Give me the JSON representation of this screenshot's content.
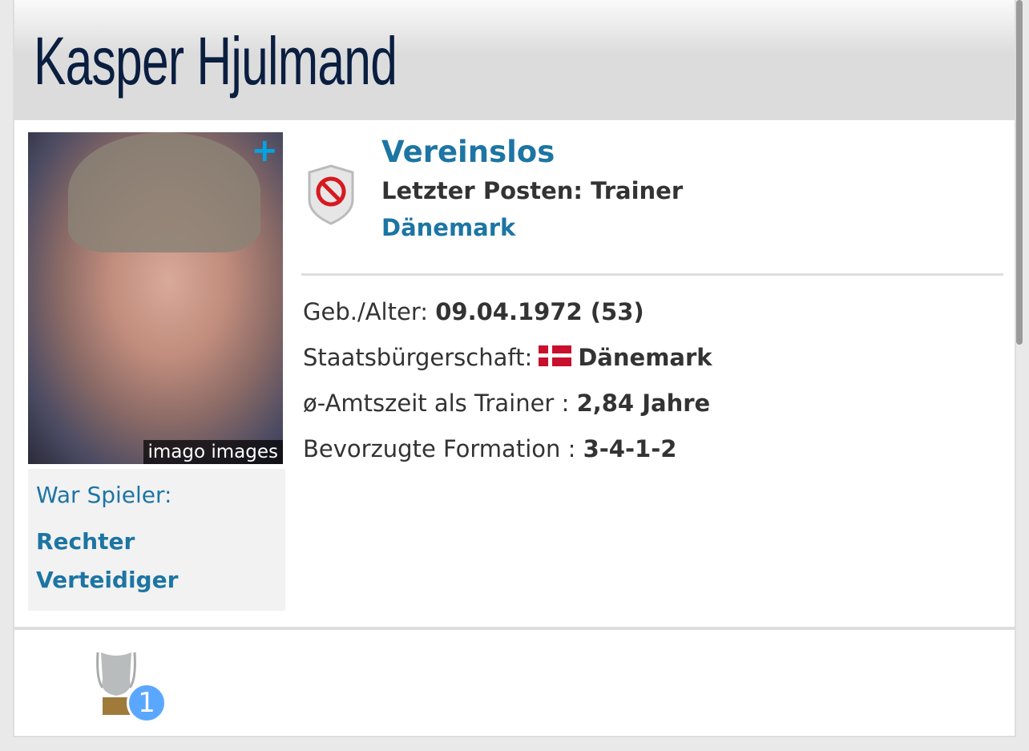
{
  "header": {
    "title": "Kasper Hjulmand"
  },
  "photo": {
    "credit": "imago images",
    "expand_icon": "plus-icon"
  },
  "player": {
    "label": "War Spieler:",
    "position": "Rechter Verteidiger"
  },
  "club": {
    "name": "Vereinslos",
    "last_post": "Letzter Posten: Trainer",
    "nation": "Dänemark",
    "icon": "no-club-shield-icon"
  },
  "facts": [
    {
      "label": "Geb./Alter:",
      "value": "09.04.1972 (53)"
    },
    {
      "label": "Staatsbürgerschaft:",
      "value": "Dänemark",
      "flag": "denmark-flag"
    },
    {
      "label": "ø-Amtszeit als Trainer :",
      "value": "2,84 Jahre"
    },
    {
      "label": "Bevorzugte Formation :",
      "value": "3-4-1-2"
    }
  ],
  "trophies": [
    {
      "icon": "trophy-icon",
      "count": "1"
    }
  ],
  "colors": {
    "link": "#1d75a3",
    "title": "#0a1e40",
    "badge": "#5aa7ff",
    "plus": "#00a4e4"
  }
}
